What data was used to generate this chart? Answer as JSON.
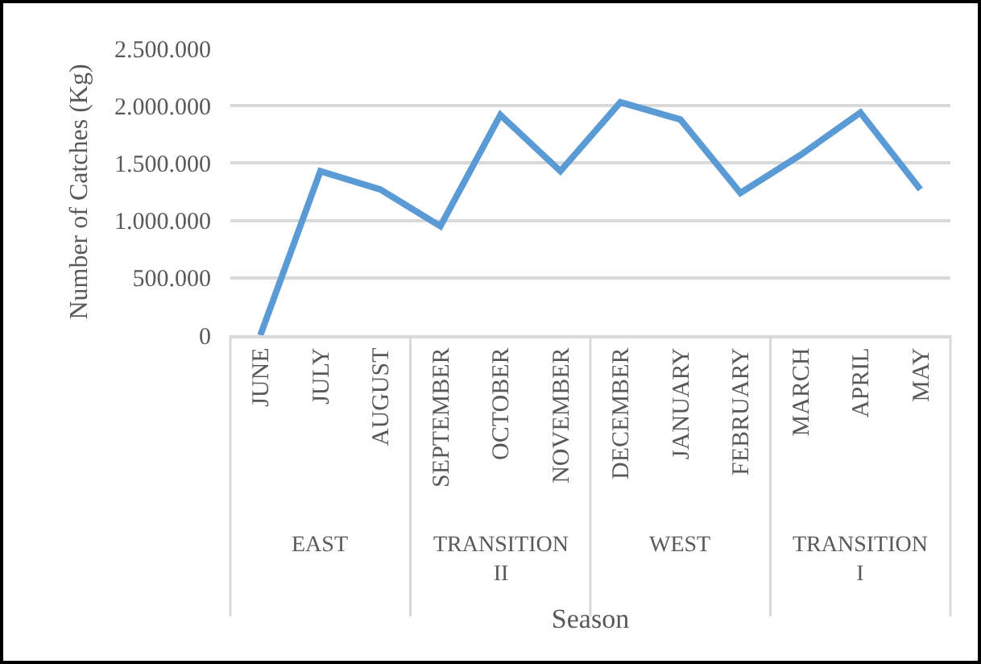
{
  "chart_data": {
    "type": "line",
    "xlabel": "Season",
    "ylabel": "Number of Catches (Kg)",
    "categories": [
      "JUNE",
      "JULY",
      "AUGUST",
      "SEPTEMBER",
      "OCTOBER",
      "NOVEMBER",
      "DECEMBER",
      "JANUARY",
      "FEBRUARY",
      "MARCH",
      "APRIL",
      "MAY"
    ],
    "series": [
      {
        "color": "#5b9bd5",
        "values": [
          0,
          1430000,
          1270000,
          950000,
          1920000,
          1430000,
          2030000,
          1880000,
          1240000,
          1570000,
          1940000,
          1270000
        ]
      }
    ],
    "annotations": [
      "EAST",
      "TRANSITION II",
      "WEST",
      "TRANSITION I"
    ],
    "ylim": [
      0,
      2500000
    ],
    "yticks": [
      0,
      {
        "value": 500000,
        "label": "500.000"
      },
      {
        "value": 1000000,
        "label": "1.000.000"
      },
      {
        "value": 1500000,
        "label": "1.500.000"
      },
      {
        "value": 2000000,
        "label": "2.000.000"
      },
      {
        "value": 2500000,
        "label": "2.500.000"
      }
    ],
    "grid": "y",
    "marker": "none",
    "line_style": "solid"
  }
}
